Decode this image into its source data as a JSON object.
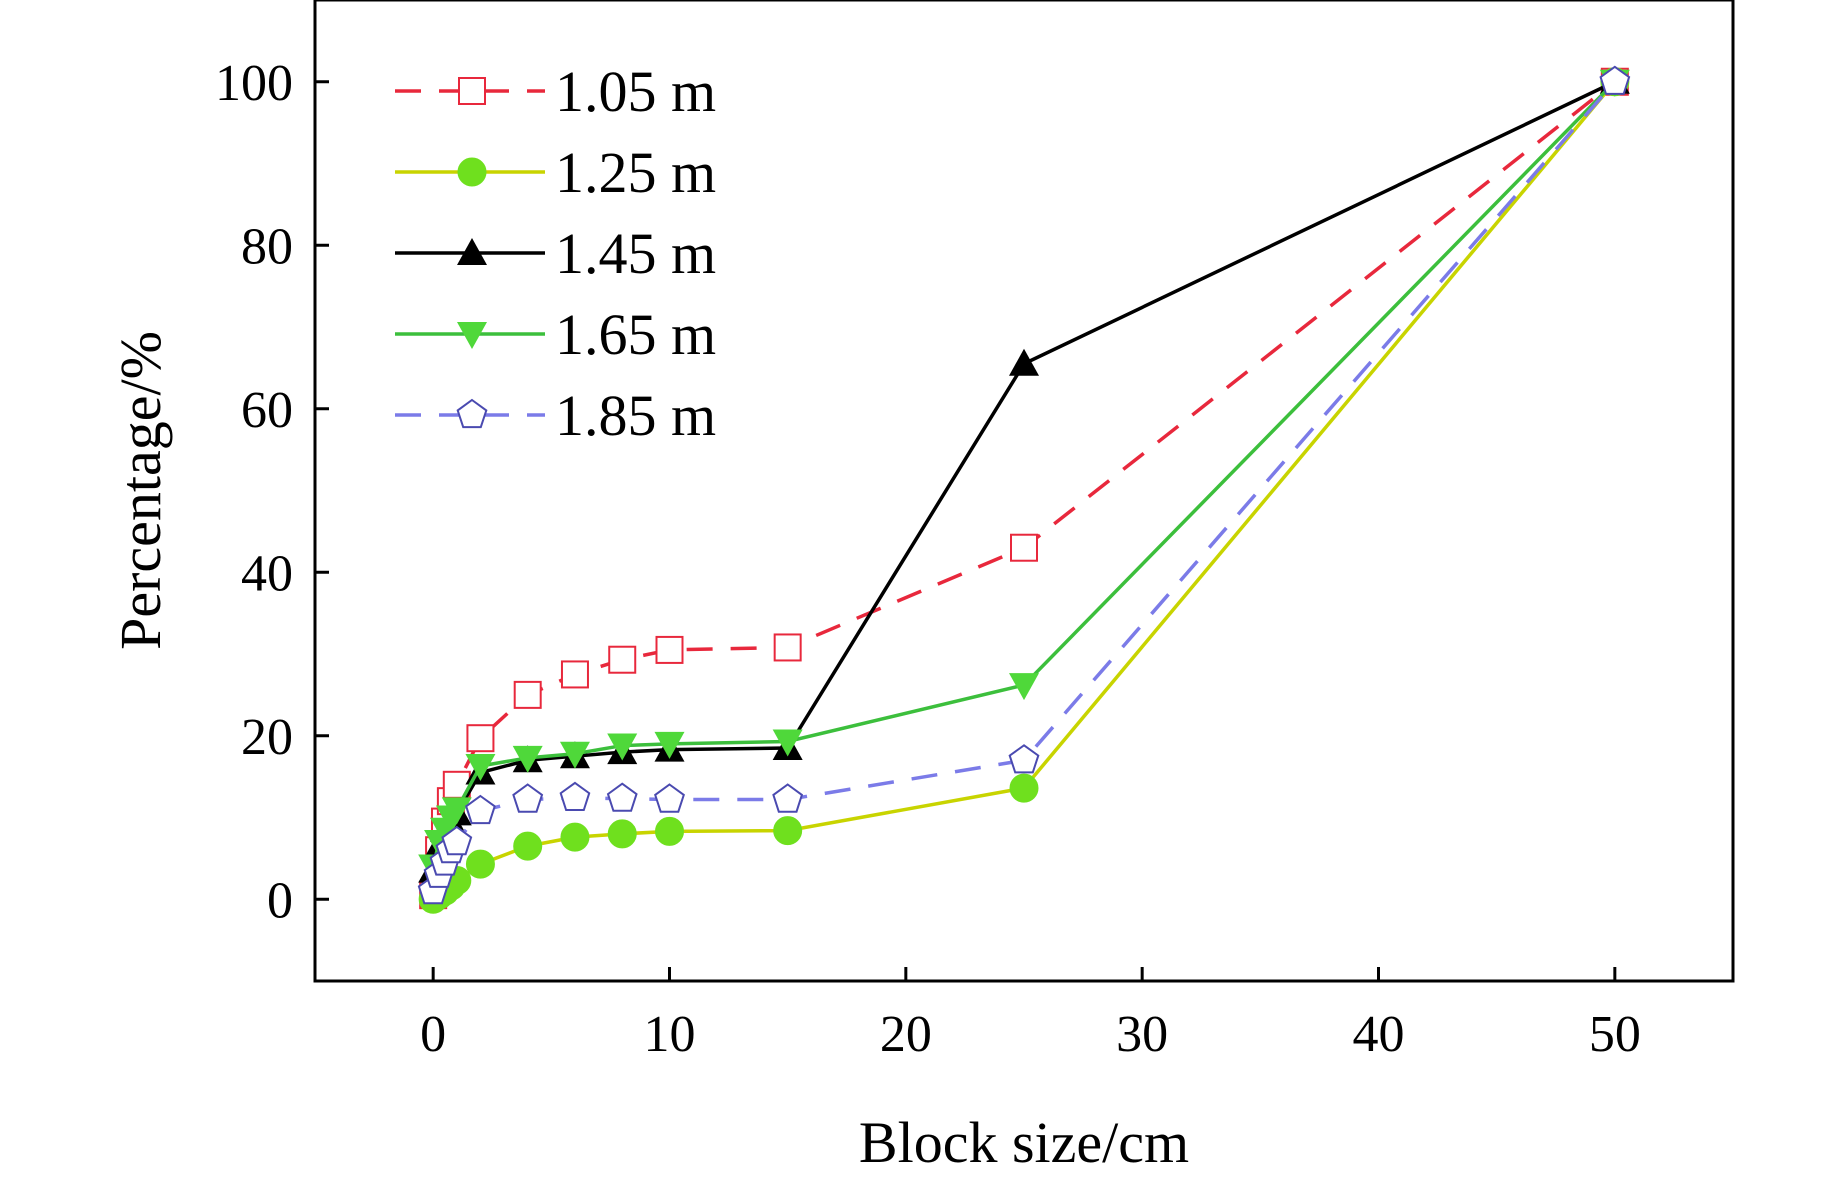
{
  "chart_data": {
    "type": "line",
    "title": "",
    "xlabel": "Block size/cm",
    "ylabel": "Percentage/%",
    "xlim": [
      -5,
      55
    ],
    "ylim": [
      -10,
      110
    ],
    "xticks": [
      0,
      10,
      20,
      30,
      40,
      50
    ],
    "yticks": [
      0,
      20,
      40,
      60,
      80,
      100
    ],
    "legend_position": "top-left",
    "series": [
      {
        "name": "1.05 m",
        "color": "#e8283c",
        "dash": "dashed",
        "marker": "open-square",
        "x": [
          0,
          0.25,
          0.5,
          0.75,
          1,
          2,
          4,
          6,
          8,
          10,
          15,
          25,
          50
        ],
        "y": [
          0.5,
          6,
          9.5,
          12,
          14,
          19.7,
          25,
          27.5,
          29.3,
          30.5,
          30.8,
          43,
          100
        ]
      },
      {
        "name": "1.25 m",
        "color": "#c8d400",
        "dash": "solid",
        "marker": "filled-circle",
        "x": [
          0,
          0.25,
          0.5,
          0.75,
          1,
          2,
          4,
          6,
          8,
          10,
          15,
          25,
          50
        ],
        "y": [
          0,
          0.5,
          1,
          1.6,
          2.3,
          4.3,
          6.5,
          7.6,
          8,
          8.3,
          8.4,
          13.6,
          100
        ]
      },
      {
        "name": "1.45 m",
        "color": "#000000",
        "dash": "solid",
        "marker": "filled-triangle-up",
        "x": [
          0,
          0.25,
          0.5,
          0.75,
          1,
          2,
          4,
          6,
          8,
          10,
          15,
          25,
          50
        ],
        "y": [
          3.5,
          6.5,
          8.5,
          9.5,
          10.5,
          15.5,
          17,
          17.5,
          18,
          18.3,
          18.5,
          65.5,
          100
        ]
      },
      {
        "name": "1.65 m",
        "color": "#3cbf3c",
        "dash": "solid",
        "marker": "filled-triangle-down",
        "x": [
          0,
          0.25,
          0.5,
          0.75,
          1,
          2,
          4,
          6,
          8,
          10,
          15,
          25,
          50
        ],
        "y": [
          4,
          7,
          8.5,
          10,
          11,
          16.3,
          17.3,
          17.8,
          18.8,
          19,
          19.3,
          26.2,
          100
        ]
      },
      {
        "name": "1.85 m",
        "color": "#7b7be8",
        "dash": "dashed",
        "marker": "open-pentagon",
        "x": [
          0,
          0.25,
          0.5,
          0.75,
          1,
          2,
          4,
          6,
          8,
          10,
          15,
          25,
          50
        ],
        "y": [
          1,
          3,
          4.5,
          6,
          7,
          10.8,
          12.2,
          12.4,
          12.3,
          12.2,
          12.2,
          17,
          100
        ]
      }
    ]
  }
}
